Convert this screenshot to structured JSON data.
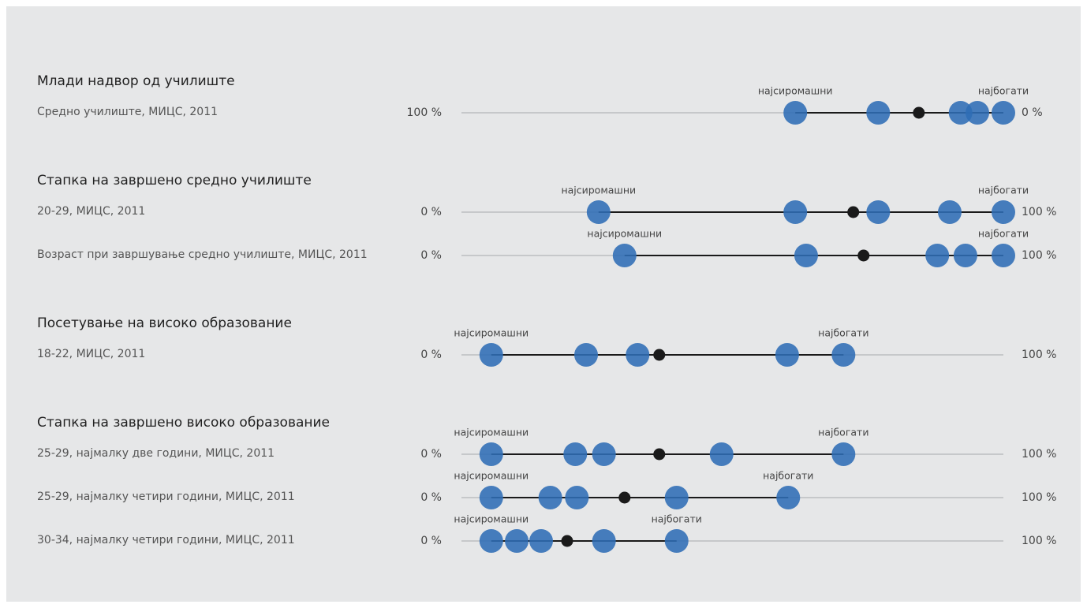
{
  "chart_data": {
    "type": "dot",
    "poorest_label": "најсиромашни",
    "richest_label": "најбогати",
    "color": "#2f6db5",
    "mean_color": "#1a1a1a",
    "groups": [
      {
        "title": "Млади надвор од училиште",
        "rows": [
          {
            "label": "Средно училиште, МИЦС, 2011",
            "values": [
              38.4,
              23.1,
              7.9,
              4.8,
              0
            ],
            "mean": 15.6,
            "xlim": [
              100,
              0
            ],
            "xticks": [
              {
                "value": 100,
                "label": "100 %"
              },
              {
                "value": 0,
                "label": "0 %"
              }
            ]
          }
        ]
      },
      {
        "title": "Стапка на завршено средно училиште",
        "rows": [
          {
            "label": "20-29, МИЦС, 2011",
            "values": [
              25.3,
              61.6,
              76.9,
              90.1,
              100
            ],
            "mean": 72.3,
            "xlim": [
              0,
              100
            ],
            "xticks": [
              {
                "value": 0,
                "label": "0 %"
              },
              {
                "value": 100,
                "label": "100 %"
              }
            ]
          },
          {
            "label": "Возраст при завршување средно училиште, МИЦС, 2011",
            "values": [
              30.1,
              63.6,
              87.8,
              93.0,
              100
            ],
            "mean": 74.2,
            "xlim": [
              0,
              100
            ],
            "xticks": [
              {
                "value": 0,
                "label": "0 %"
              },
              {
                "value": 100,
                "label": "100 %"
              }
            ]
          }
        ]
      },
      {
        "title": "Посетување на високо образование",
        "rows": [
          {
            "label": "18-22, МИЦС, 2011",
            "values": [
              5.5,
              23.0,
              32.5,
              60.1,
              70.5
            ],
            "mean": 36.5,
            "xlim": [
              0,
              100
            ],
            "xticks": [
              {
                "value": 0,
                "label": "0 %"
              },
              {
                "value": 100,
                "label": "100 %"
              }
            ]
          }
        ]
      },
      {
        "title": "Стапка на завршено високо образование",
        "rows": [
          {
            "label": "25-29, најмалку две години, МИЦС, 2011",
            "values": [
              5.5,
              21.0,
              26.3,
              48.0,
              70.5
            ],
            "mean": 36.5,
            "xlim": [
              0,
              100
            ],
            "xticks": [
              {
                "value": 0,
                "label": "0 %"
              },
              {
                "value": 100,
                "label": "100 %"
              }
            ]
          },
          {
            "label": "25-29, најмалку четири години, МИЦС, 2011",
            "values": [
              5.5,
              16.4,
              21.3,
              39.7,
              60.3
            ],
            "mean": 30.1,
            "xlim": [
              0,
              100
            ],
            "xticks": [
              {
                "value": 0,
                "label": "0 %"
              },
              {
                "value": 100,
                "label": "100 %"
              }
            ]
          },
          {
            "label": "30-34, најмалку четири години, МИЦС, 2011",
            "values": [
              5.5,
              10.2,
              14.7,
              26.3,
              39.7
            ],
            "mean": 19.5,
            "xlim": [
              0,
              100
            ],
            "xticks": [
              {
                "value": 0,
                "label": "0 %"
              },
              {
                "value": 100,
                "label": "100 %"
              }
            ]
          }
        ]
      }
    ]
  }
}
